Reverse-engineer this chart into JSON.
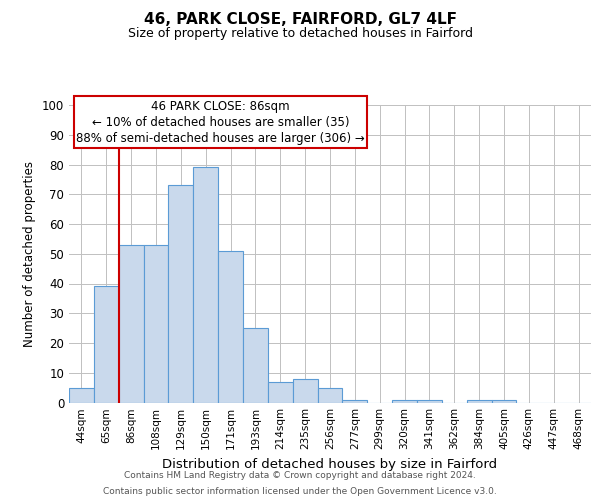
{
  "title1": "46, PARK CLOSE, FAIRFORD, GL7 4LF",
  "title2": "Size of property relative to detached houses in Fairford",
  "xlabel": "Distribution of detached houses by size in Fairford",
  "ylabel": "Number of detached properties",
  "bins": [
    "44sqm",
    "65sqm",
    "86sqm",
    "108sqm",
    "129sqm",
    "150sqm",
    "171sqm",
    "193sqm",
    "214sqm",
    "235sqm",
    "256sqm",
    "277sqm",
    "299sqm",
    "320sqm",
    "341sqm",
    "362sqm",
    "384sqm",
    "405sqm",
    "426sqm",
    "447sqm",
    "468sqm"
  ],
  "values": [
    5,
    39,
    53,
    53,
    73,
    79,
    51,
    25,
    7,
    8,
    5,
    1,
    0,
    1,
    1,
    0,
    1,
    1,
    0,
    0,
    0
  ],
  "bar_color": "#c9d9ec",
  "bar_edge_color": "#5b9bd5",
  "red_line_index": 2,
  "annotation_title": "46 PARK CLOSE: 86sqm",
  "annotation_line2": "← 10% of detached houses are smaller (35)",
  "annotation_line3": "88% of semi-detached houses are larger (306) →",
  "annotation_box_color": "#ffffff",
  "annotation_edge_color": "#cc0000",
  "red_line_color": "#cc0000",
  "ylim": [
    0,
    100
  ],
  "footer1": "Contains HM Land Registry data © Crown copyright and database right 2024.",
  "footer2": "Contains public sector information licensed under the Open Government Licence v3.0.",
  "background_color": "#ffffff",
  "grid_color": "#c0c0c0"
}
